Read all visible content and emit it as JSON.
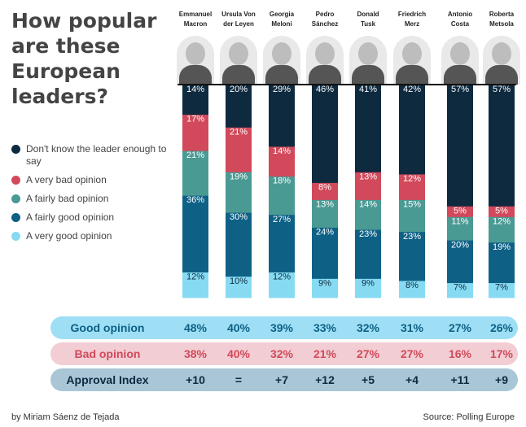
{
  "title": "How popular are these European leaders?",
  "legend": [
    {
      "label": "Don't know the leader enough to say",
      "color": "#0e2a3f"
    },
    {
      "label": "A very bad opinion",
      "color": "#d1495b"
    },
    {
      "label": "A fairly bad opinion",
      "color": "#4a9a94"
    },
    {
      "label": "A fairly good opinion",
      "color": "#0e6185"
    },
    {
      "label": "A very good opinion",
      "color": "#86dbf3"
    }
  ],
  "chart_data": {
    "type": "bar",
    "stacked": true,
    "categories": [
      "Emmanuel Macron",
      "Ursula Von der Leyen",
      "Georgia Meloni",
      "Pedro Sánchez",
      "Donald Tusk",
      "Friedrich Merz",
      "Antonio Costa",
      "Roberta Metsola"
    ],
    "series": [
      {
        "name": "A very good opinion",
        "values": [
          12,
          10,
          12,
          9,
          9,
          8,
          7,
          7
        ]
      },
      {
        "name": "A fairly good opinion",
        "values": [
          36,
          30,
          27,
          24,
          23,
          23,
          20,
          19
        ]
      },
      {
        "name": "A fairly bad opinion",
        "values": [
          21,
          19,
          18,
          13,
          14,
          15,
          11,
          12
        ]
      },
      {
        "name": "A very bad opinion",
        "values": [
          17,
          21,
          14,
          8,
          13,
          12,
          5,
          5
        ]
      },
      {
        "name": "Don't know the leader enough to say",
        "values": [
          14,
          20,
          29,
          46,
          41,
          42,
          57,
          57
        ]
      }
    ],
    "ylim": [
      0,
      100
    ]
  },
  "leaders": [
    {
      "line1": "Emmanuel",
      "line2": "Macron"
    },
    {
      "line1": "Ursula Von",
      "line2": "der Leyen"
    },
    {
      "line1": "Georgia",
      "line2": "Meloni"
    },
    {
      "line1": "Pedro",
      "line2": "Sánchez"
    },
    {
      "line1": "Donald",
      "line2": "Tusk"
    },
    {
      "line1": "Friedrich",
      "line2": "Merz"
    },
    {
      "line1": "Antonio",
      "line2": "Costa"
    },
    {
      "line1": "Roberta",
      "line2": "Metsola"
    }
  ],
  "summary": {
    "good": {
      "label": "Good opinion",
      "bg": "#9fdff6",
      "color": "#0e6185",
      "values": [
        "48%",
        "40%",
        "39%",
        "33%",
        "32%",
        "31%",
        "27%",
        "26%"
      ]
    },
    "bad": {
      "label": "Bad opinion",
      "bg": "#f2cdd3",
      "color": "#d1495b",
      "values": [
        "38%",
        "40%",
        "32%",
        "21%",
        "27%",
        "27%",
        "16%",
        "17%"
      ]
    },
    "index": {
      "label": "Approval Index",
      "bg": "#a9c6d7",
      "color": "#0e2a3f",
      "values": [
        "+10",
        "=",
        "+7",
        "+12",
        "+5",
        "+4",
        "+11",
        "+9"
      ]
    }
  },
  "footer": {
    "author": "by Miriam Sáenz de Tejada",
    "source": "Source: Polling Europe"
  }
}
